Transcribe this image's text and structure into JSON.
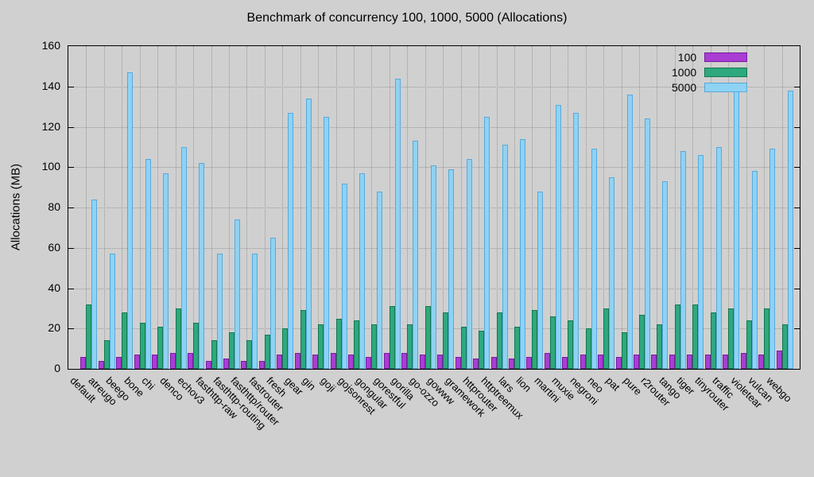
{
  "title": "Benchmark of concurrency 100, 1000, 5000 (Allocations)",
  "colors": {
    "background": "#d0d0d0",
    "grid": "#989898",
    "axis": "#000000",
    "series_100_fill": "#a93dd4",
    "series_100_edge": "#7a1ba0",
    "series_1000_fill": "#2ea87e",
    "series_1000_edge": "#15774f",
    "series_5000_fill": "#8ed2f4",
    "series_5000_edge": "#5ba9d8"
  },
  "chart_data": {
    "type": "bar",
    "title": "Benchmark of concurrency 100, 1000, 5000 (Allocations)",
    "xlabel": "",
    "ylabel": "Allocations (MB)",
    "ylim": [
      0,
      160
    ],
    "yticks": [
      0,
      20,
      40,
      60,
      80,
      100,
      120,
      140,
      160
    ],
    "grid": "dotted",
    "legend_position": "top-right",
    "categories": [
      "default",
      "atreugo",
      "beego",
      "bone",
      "chi",
      "denco",
      "echov3",
      "fasthttp-raw",
      "fasthttp-routing",
      "fasthttp/router",
      "fastrouter",
      "fresh",
      "gear",
      "gin",
      "goji",
      "gojsonrest",
      "gongular",
      "gorestful",
      "gorilla",
      "go-ozzo",
      "gowww",
      "gramework",
      "httprouter",
      "httptreemux",
      "lars",
      "lion",
      "martini",
      "muxie",
      "negroni",
      "neo",
      "pat",
      "pure",
      "r2router",
      "tango",
      "tiger",
      "tinyrouter",
      "traffic",
      "violetear",
      "vulcan",
      "webgo"
    ],
    "series": [
      {
        "name": "100",
        "fill": "#a93dd4",
        "edge": "#7a1ba0",
        "values": [
          6,
          4,
          6,
          7,
          7,
          8,
          8,
          4,
          5,
          4,
          4,
          7,
          8,
          7,
          8,
          7,
          6,
          8,
          8,
          7,
          7,
          6,
          5,
          6,
          5,
          6,
          8,
          6,
          7,
          7,
          6,
          7,
          7,
          7,
          7,
          7,
          7,
          8,
          7,
          9
        ]
      },
      {
        "name": "1000",
        "fill": "#2ea87e",
        "edge": "#15774f",
        "values": [
          32,
          14,
          28,
          23,
          21,
          30,
          23,
          14,
          18,
          14,
          17,
          20,
          29,
          22,
          25,
          24,
          22,
          31,
          22,
          31,
          28,
          21,
          19,
          28,
          21,
          29,
          26,
          24,
          20,
          30,
          18,
          27,
          22,
          32,
          32,
          28,
          30,
          24,
          30,
          22
        ]
      },
      {
        "name": "5000",
        "fill": "#8ed2f4",
        "edge": "#5ba9d8",
        "values": [
          84,
          57,
          147,
          104,
          97,
          110,
          102,
          57,
          74,
          57,
          65,
          127,
          134,
          125,
          92,
          97,
          88,
          144,
          113,
          101,
          99,
          104,
          125,
          111,
          114,
          88,
          131,
          127,
          109,
          95,
          136,
          124,
          93,
          108,
          106,
          110,
          138,
          98,
          109,
          138
        ]
      }
    ]
  }
}
